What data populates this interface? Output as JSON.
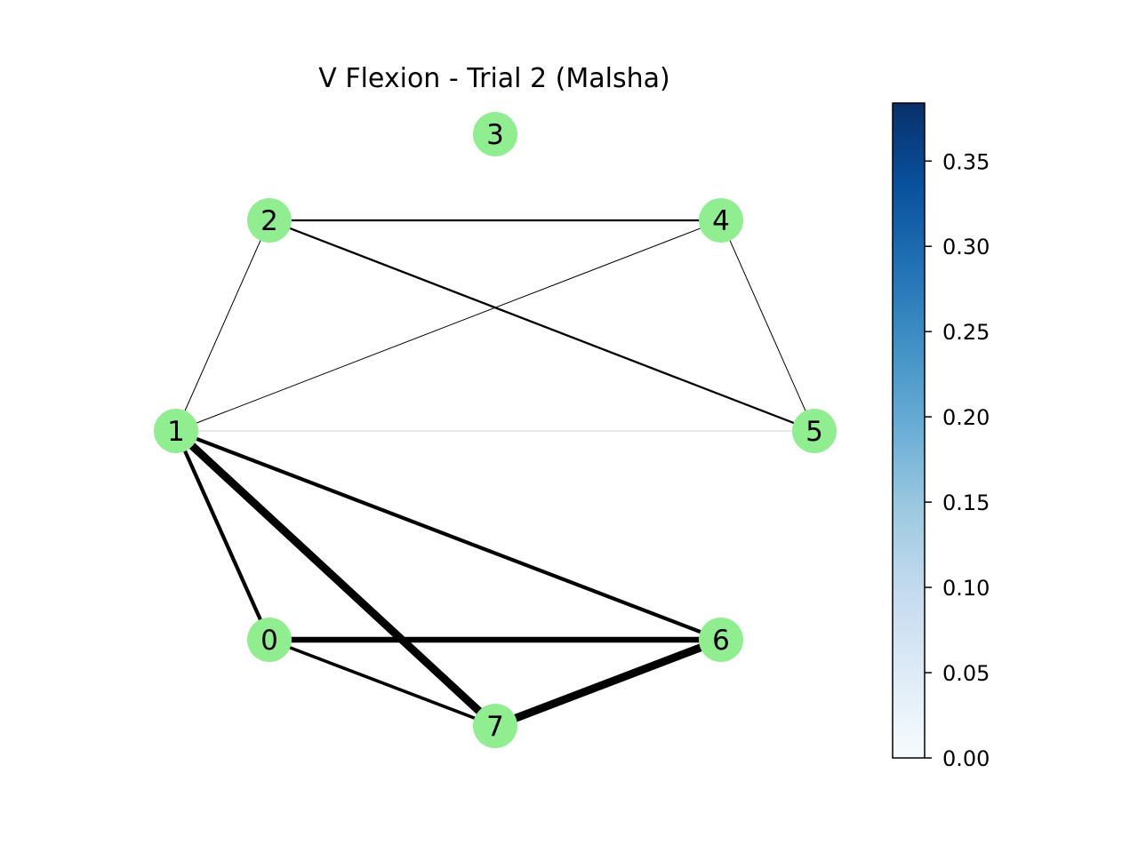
{
  "title": "V Flexion - Trial 2 (Malsha)",
  "node_color": "#90ee90",
  "edge_color": "#000000",
  "nodes": [
    {
      "id": "0",
      "label": "0"
    },
    {
      "id": "1",
      "label": "1"
    },
    {
      "id": "2",
      "label": "2"
    },
    {
      "id": "3",
      "label": "3"
    },
    {
      "id": "4",
      "label": "4"
    },
    {
      "id": "5",
      "label": "5"
    },
    {
      "id": "6",
      "label": "6"
    },
    {
      "id": "7",
      "label": "7"
    }
  ],
  "edges": [
    {
      "source": "2",
      "target": "4",
      "weight": 0.19
    },
    {
      "source": "2",
      "target": "5",
      "weight": 0.19
    },
    {
      "source": "1",
      "target": "2",
      "weight": 0.05
    },
    {
      "source": "1",
      "target": "4",
      "weight": 0.03
    },
    {
      "source": "4",
      "target": "5",
      "weight": 0.07
    },
    {
      "source": "1",
      "target": "5",
      "weight": 0.01
    },
    {
      "source": "1",
      "target": "0",
      "weight": 0.35
    },
    {
      "source": "1",
      "target": "7",
      "weight": 0.75
    },
    {
      "source": "1",
      "target": "6",
      "weight": 0.35
    },
    {
      "source": "0",
      "target": "6",
      "weight": 0.55
    },
    {
      "source": "0",
      "target": "7",
      "weight": 0.3
    },
    {
      "source": "7",
      "target": "6",
      "weight": 0.75
    }
  ],
  "colorbar": {
    "colormap": "Blues",
    "min": 0.0,
    "max": 0.384,
    "ticks": [
      "0.00",
      "0.05",
      "0.10",
      "0.15",
      "0.20",
      "0.25",
      "0.30",
      "0.35"
    ],
    "tick_values": [
      0.0,
      0.05,
      0.1,
      0.15,
      0.2,
      0.25,
      0.3,
      0.35
    ]
  }
}
